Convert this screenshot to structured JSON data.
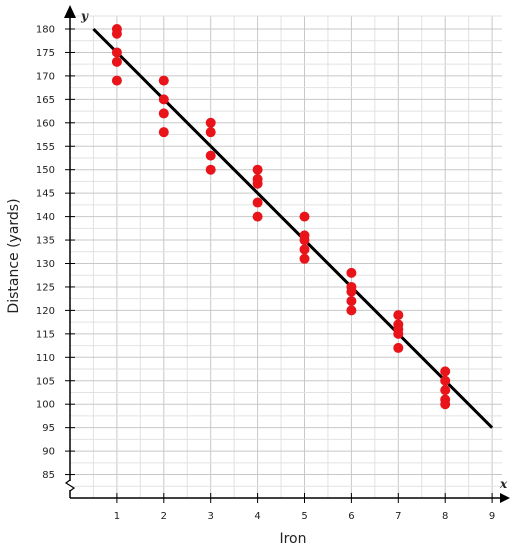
{
  "chart_data": {
    "type": "scatter",
    "title": "",
    "xlabel": "Iron",
    "ylabel": "Distance (yards)",
    "x_axis_var": "x",
    "y_axis_var": "y",
    "xlim": [
      0,
      9
    ],
    "ylim": [
      80,
      180
    ],
    "x_ticks": [
      "1",
      "2",
      "3",
      "4",
      "5",
      "6",
      "7",
      "8",
      "9"
    ],
    "y_ticks": [
      "85",
      "90",
      "95",
      "100",
      "105",
      "110",
      "115",
      "120",
      "125",
      "130",
      "135",
      "140",
      "145",
      "150",
      "155",
      "160",
      "165",
      "170",
      "175",
      "180"
    ],
    "axis_break": "y",
    "grid": true,
    "point_color": "#e8141a",
    "line_color": "#000000",
    "series": [
      {
        "x": [
          1,
          1,
          1,
          1,
          1,
          2,
          2,
          2,
          2,
          3,
          3,
          3,
          3,
          4,
          4,
          4,
          4,
          4,
          5,
          5,
          5,
          5,
          5,
          6,
          6,
          6,
          6,
          6,
          7,
          7,
          7,
          7,
          7,
          8,
          8,
          8,
          8,
          8
        ],
        "y": [
          180,
          179,
          175,
          173,
          169,
          169,
          165,
          162,
          158,
          160,
          158,
          153,
          150,
          150,
          148,
          147,
          143,
          140,
          140,
          136,
          135,
          133,
          131,
          128,
          125,
          124,
          122,
          120,
          119,
          117,
          116,
          115,
          112,
          107,
          105,
          103,
          101,
          100
        ]
      }
    ],
    "trend_line": {
      "x": [
        0.5,
        9
      ],
      "y": [
        180,
        95
      ]
    }
  }
}
